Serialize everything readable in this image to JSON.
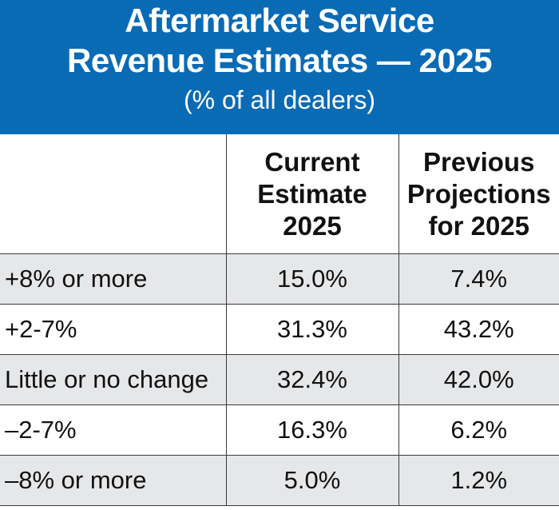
{
  "header": {
    "title_line1": "Aftermarket Service",
    "title_line2": "Revenue Estimates — 2025",
    "subtitle": "(% of all dealers)"
  },
  "columns": [
    {
      "key": "label",
      "lines": []
    },
    {
      "key": "current",
      "lines": [
        "Current",
        "Estimate",
        "2025"
      ]
    },
    {
      "key": "previous",
      "lines": [
        "Previous",
        "Projections",
        "for 2025"
      ]
    }
  ],
  "rows": [
    {
      "label": "+8% or more",
      "current": "15.0%",
      "previous": "7.4%"
    },
    {
      "label": "+2-7%",
      "current": "31.3%",
      "previous": "43.2%"
    },
    {
      "label": "Little or no change",
      "current": "32.4%",
      "previous": "42.0%"
    },
    {
      "label": "–2-7%",
      "current": "16.3%",
      "previous": "6.2%"
    },
    {
      "label": "–8% or more",
      "current": "5.0%",
      "previous": "1.2%"
    }
  ],
  "chart_data": {
    "type": "table",
    "title": "Aftermarket Service Revenue Estimates — 2025",
    "subtitle": "(% of all dealers)",
    "categories": [
      "+8% or more",
      "+2-7%",
      "Little or no change",
      "–2-7%",
      "–8% or more"
    ],
    "series": [
      {
        "name": "Current Estimate 2025",
        "values": [
          15.0,
          31.3,
          32.4,
          16.3,
          5.0
        ]
      },
      {
        "name": "Previous Projections for 2025",
        "values": [
          7.4,
          43.2,
          42.0,
          6.2,
          1.2
        ]
      }
    ]
  },
  "colors": {
    "header_bg": "#0a6bb5",
    "header_text": "#ffffff",
    "row_shade": "#e6e7e9",
    "border": "#3a3a3a"
  }
}
